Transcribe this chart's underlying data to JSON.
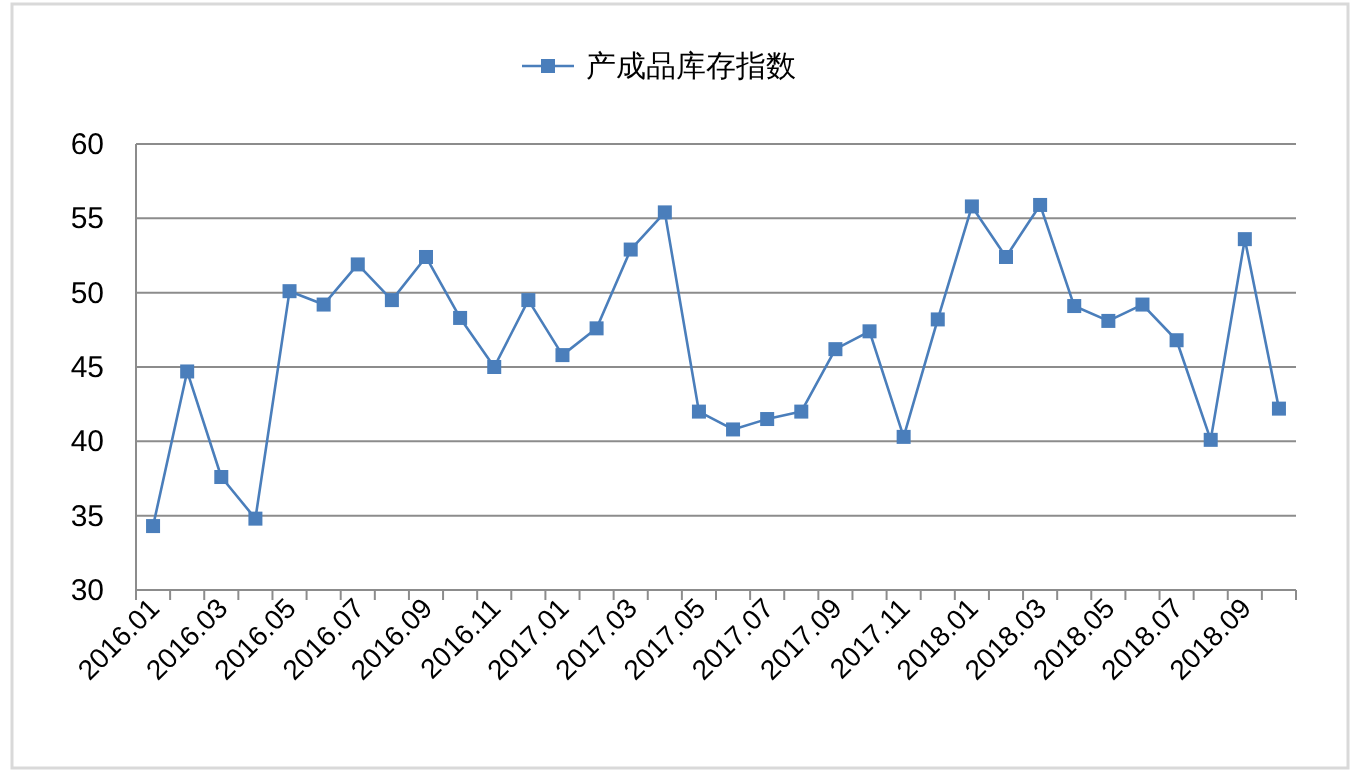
{
  "chart_data": {
    "type": "line",
    "categories": [
      "2016.01",
      null,
      "2016.03",
      null,
      "2016.05",
      null,
      "2016.07",
      null,
      "2016.09",
      null,
      "2016.11",
      null,
      "2017.01",
      null,
      "2017.03",
      null,
      "2017.05",
      null,
      "2017.07",
      null,
      "2017.09",
      null,
      "2017.11",
      null,
      "2018.01",
      null,
      "2018.03",
      null,
      "2018.05",
      null,
      "2018.07",
      null,
      "2018.09",
      null
    ],
    "series": [
      {
        "name": "产成品库存指数",
        "color": "#4a7ebb",
        "values": [
          34.3,
          44.7,
          37.6,
          34.8,
          50.1,
          49.2,
          51.9,
          49.5,
          52.4,
          48.3,
          45.0,
          49.5,
          45.8,
          47.6,
          52.9,
          55.4,
          42.0,
          40.8,
          41.5,
          42.0,
          46.2,
          47.4,
          40.3,
          48.2,
          55.8,
          52.4,
          55.9,
          49.1,
          48.1,
          49.2,
          46.8,
          40.1,
          53.6,
          42.2
        ]
      }
    ],
    "ylim": [
      30,
      60
    ],
    "yticks": [
      30,
      35,
      40,
      45,
      50,
      55,
      60
    ],
    "grid": "y",
    "legend": "top",
    "marker": "square",
    "line_style": "solid"
  }
}
